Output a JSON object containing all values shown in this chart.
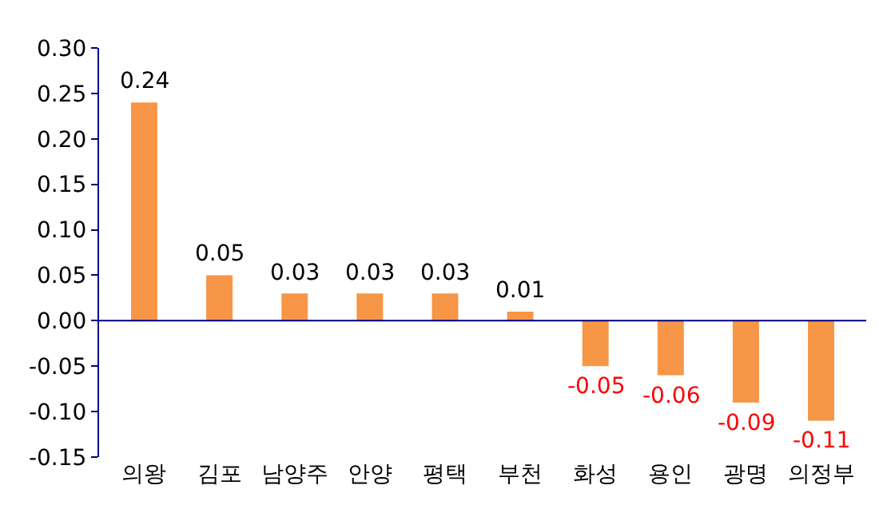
{
  "chart_data": {
    "type": "bar",
    "categories": [
      "의왕",
      "김포",
      "남양주",
      "안양",
      "평택",
      "부천",
      "화성",
      "용인",
      "광명",
      "의정부"
    ],
    "values": [
      0.24,
      0.05,
      0.03,
      0.03,
      0.03,
      0.01,
      -0.05,
      -0.06,
      -0.09,
      -0.11
    ],
    "color": "#f79646",
    "ylim": [
      -0.15,
      0.3
    ],
    "yticks": [
      {
        "value": -0.15,
        "label": "-0.15"
      },
      {
        "value": -0.1,
        "label": "-0.10"
      },
      {
        "value": -0.05,
        "label": "-0.05"
      },
      {
        "value": 0,
        "label": "0.00"
      },
      {
        "value": 0.05,
        "label": "0.05"
      },
      {
        "value": 0.1,
        "label": "0.10"
      },
      {
        "value": 0.15,
        "label": "0.15"
      },
      {
        "value": 0.2,
        "label": "0.20"
      },
      {
        "value": 0.25,
        "label": "0.25"
      },
      {
        "value": 0.3,
        "label": "0.30"
      }
    ],
    "data_labels": true,
    "ref_lines": [
      {
        "axis": "y",
        "value": 0,
        "color": "#000080"
      }
    ]
  }
}
